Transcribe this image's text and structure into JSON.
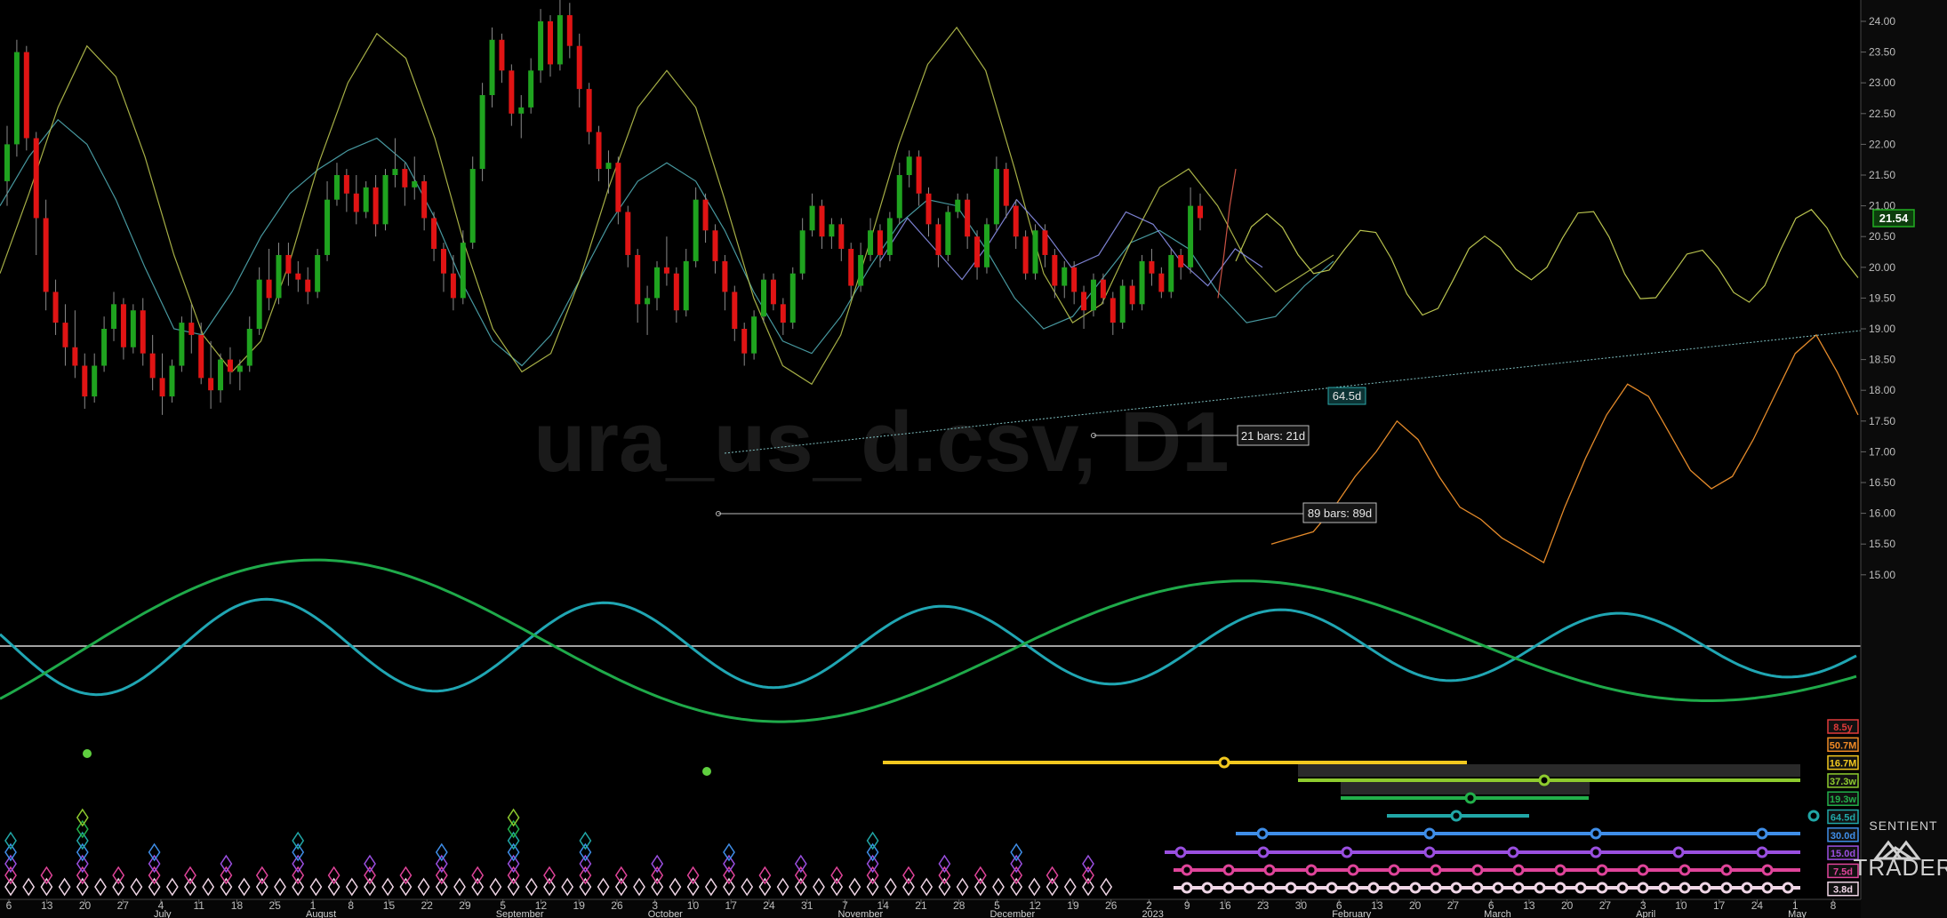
{
  "watermark": "ura_us_d.csv, D1",
  "logo": {
    "line1": "SENTIENT",
    "line2": "TRADER"
  },
  "chart_data": {
    "type": "candlestick",
    "title": "",
    "price_axis": {
      "ticks": [
        "24.00",
        "23.50",
        "23.00",
        "22.50",
        "22.00",
        "21.50",
        "21.00",
        "20.50",
        "20.00",
        "19.50",
        "19.00",
        "18.50",
        "18.00",
        "17.50",
        "17.00",
        "16.50",
        "16.00",
        "15.50",
        "15.00"
      ],
      "ylim": [
        14.0,
        24.3
      ],
      "current_price": "21.54"
    },
    "x_axis": {
      "day_ticks": [
        "6",
        "13",
        "20",
        "27",
        "4",
        "11",
        "18",
        "25",
        "1",
        "8",
        "15",
        "22",
        "29",
        "5",
        "12",
        "19",
        "26",
        "3",
        "10",
        "17",
        "24",
        "31",
        "7",
        "14",
        "21",
        "28",
        "5",
        "12",
        "19",
        "26",
        "2",
        "9",
        "16",
        "23",
        "30",
        "6",
        "13",
        "20",
        "27",
        "6",
        "13",
        "20",
        "27",
        "3",
        "10",
        "17",
        "24",
        "1",
        "8"
      ],
      "months": [
        "July",
        "August",
        "September",
        "October",
        "November",
        "December",
        "2023",
        "February",
        "March",
        "April",
        "May"
      ],
      "month_tick_index": [
        4,
        8,
        13,
        17,
        22,
        26,
        30,
        35,
        39,
        43,
        47
      ]
    },
    "candles": [
      [
        21.4,
        22.3,
        21.0,
        22.0
      ],
      [
        22.0,
        23.7,
        21.8,
        23.5
      ],
      [
        23.5,
        23.6,
        21.9,
        22.1
      ],
      [
        22.1,
        22.2,
        20.2,
        20.8
      ],
      [
        20.8,
        21.1,
        19.3,
        19.6
      ],
      [
        19.6,
        19.8,
        18.9,
        19.1
      ],
      [
        19.1,
        19.4,
        18.4,
        18.7
      ],
      [
        18.7,
        19.3,
        18.2,
        18.4
      ],
      [
        18.4,
        18.6,
        17.7,
        17.9
      ],
      [
        17.9,
        18.6,
        17.8,
        18.4
      ],
      [
        18.4,
        19.2,
        18.3,
        19.0
      ],
      [
        19.0,
        19.6,
        18.8,
        19.4
      ],
      [
        19.4,
        19.5,
        18.5,
        18.7
      ],
      [
        18.7,
        19.4,
        18.6,
        19.3
      ],
      [
        19.3,
        19.5,
        18.4,
        18.6
      ],
      [
        18.6,
        18.9,
        18.0,
        18.2
      ],
      [
        18.2,
        18.6,
        17.6,
        17.9
      ],
      [
        17.9,
        18.5,
        17.8,
        18.4
      ],
      [
        18.4,
        19.2,
        18.3,
        19.1
      ],
      [
        19.1,
        19.4,
        18.6,
        18.9
      ],
      [
        18.9,
        19.1,
        18.1,
        18.2
      ],
      [
        18.2,
        18.8,
        17.7,
        18.0
      ],
      [
        18.0,
        18.6,
        17.8,
        18.5
      ],
      [
        18.5,
        18.7,
        18.1,
        18.3
      ],
      [
        18.3,
        18.5,
        18.0,
        18.4
      ],
      [
        18.4,
        19.2,
        18.3,
        19.0
      ],
      [
        19.0,
        20.0,
        18.9,
        19.8
      ],
      [
        19.8,
        20.3,
        19.3,
        19.5
      ],
      [
        19.5,
        20.4,
        19.4,
        20.2
      ],
      [
        20.2,
        20.4,
        19.7,
        19.9
      ],
      [
        19.9,
        20.1,
        19.6,
        19.8
      ],
      [
        19.8,
        20.0,
        19.4,
        19.6
      ],
      [
        19.6,
        20.3,
        19.5,
        20.2
      ],
      [
        20.2,
        21.4,
        20.1,
        21.1
      ],
      [
        21.1,
        21.7,
        21.0,
        21.5
      ],
      [
        21.5,
        21.6,
        20.9,
        21.2
      ],
      [
        21.2,
        21.5,
        20.7,
        20.9
      ],
      [
        20.9,
        21.4,
        20.8,
        21.3
      ],
      [
        21.3,
        21.5,
        20.5,
        20.7
      ],
      [
        20.7,
        21.6,
        20.6,
        21.5
      ],
      [
        21.5,
        22.1,
        21.3,
        21.6
      ],
      [
        21.6,
        21.7,
        21.0,
        21.3
      ],
      [
        21.3,
        21.8,
        21.1,
        21.4
      ],
      [
        21.4,
        21.5,
        20.6,
        20.8
      ],
      [
        20.8,
        20.9,
        20.1,
        20.3
      ],
      [
        20.3,
        20.4,
        19.6,
        19.9
      ],
      [
        19.9,
        20.2,
        19.3,
        19.5
      ],
      [
        19.5,
        20.6,
        19.4,
        20.4
      ],
      [
        20.4,
        21.8,
        20.3,
        21.6
      ],
      [
        21.6,
        23.0,
        21.4,
        22.8
      ],
      [
        22.8,
        23.9,
        22.6,
        23.7
      ],
      [
        23.7,
        23.8,
        23.0,
        23.2
      ],
      [
        23.2,
        23.3,
        22.3,
        22.5
      ],
      [
        22.5,
        22.8,
        22.1,
        22.6
      ],
      [
        22.6,
        23.4,
        22.5,
        23.2
      ],
      [
        23.2,
        24.2,
        23.0,
        24.0
      ],
      [
        24.0,
        24.1,
        23.1,
        23.3
      ],
      [
        23.3,
        24.4,
        23.2,
        24.1
      ],
      [
        24.1,
        24.3,
        23.4,
        23.6
      ],
      [
        23.6,
        23.8,
        22.6,
        22.9
      ],
      [
        22.9,
        23.0,
        22.0,
        22.2
      ],
      [
        22.2,
        22.3,
        21.4,
        21.6
      ],
      [
        21.6,
        21.9,
        21.2,
        21.7
      ],
      [
        21.7,
        21.8,
        20.7,
        20.9
      ],
      [
        20.9,
        21.0,
        20.0,
        20.2
      ],
      [
        20.2,
        20.3,
        19.1,
        19.4
      ],
      [
        19.4,
        19.7,
        18.9,
        19.5
      ],
      [
        19.5,
        20.1,
        19.3,
        20.0
      ],
      [
        20.0,
        20.5,
        19.7,
        19.9
      ],
      [
        19.9,
        20.0,
        19.1,
        19.3
      ],
      [
        19.3,
        20.3,
        19.2,
        20.1
      ],
      [
        20.1,
        21.3,
        20.0,
        21.1
      ],
      [
        21.1,
        21.2,
        20.4,
        20.6
      ],
      [
        20.6,
        20.7,
        19.9,
        20.1
      ],
      [
        20.1,
        20.2,
        19.3,
        19.6
      ],
      [
        19.6,
        19.7,
        18.8,
        19.0
      ],
      [
        19.0,
        19.1,
        18.4,
        18.6
      ],
      [
        18.6,
        19.3,
        18.5,
        19.2
      ],
      [
        19.2,
        19.9,
        19.1,
        19.8
      ],
      [
        19.8,
        19.9,
        19.3,
        19.4
      ],
      [
        19.4,
        19.5,
        18.9,
        19.1
      ],
      [
        19.1,
        20.0,
        19.0,
        19.9
      ],
      [
        19.9,
        20.8,
        19.8,
        20.6
      ],
      [
        20.6,
        21.2,
        20.5,
        21.0
      ],
      [
        21.0,
        21.1,
        20.3,
        20.5
      ],
      [
        20.5,
        20.8,
        20.3,
        20.7
      ],
      [
        20.7,
        20.8,
        20.1,
        20.3
      ],
      [
        20.3,
        20.4,
        19.5,
        19.7
      ],
      [
        19.7,
        20.4,
        19.6,
        20.2
      ],
      [
        20.2,
        20.8,
        20.1,
        20.6
      ],
      [
        20.6,
        20.7,
        20.0,
        20.2
      ],
      [
        20.2,
        20.9,
        20.1,
        20.8
      ],
      [
        20.8,
        21.7,
        20.7,
        21.5
      ],
      [
        21.5,
        21.9,
        21.3,
        21.8
      ],
      [
        21.8,
        21.9,
        21.0,
        21.2
      ],
      [
        21.2,
        21.3,
        20.5,
        20.7
      ],
      [
        20.7,
        20.8,
        20.0,
        20.2
      ],
      [
        20.2,
        21.0,
        20.1,
        20.9
      ],
      [
        20.9,
        21.2,
        20.8,
        21.1
      ],
      [
        21.1,
        21.2,
        20.3,
        20.5
      ],
      [
        20.5,
        20.6,
        19.8,
        20.0
      ],
      [
        20.0,
        20.8,
        19.9,
        20.7
      ],
      [
        20.7,
        21.8,
        20.6,
        21.6
      ],
      [
        21.6,
        21.7,
        20.8,
        21.0
      ],
      [
        21.0,
        21.1,
        20.3,
        20.5
      ],
      [
        20.5,
        20.6,
        19.8,
        19.9
      ],
      [
        19.9,
        20.7,
        19.8,
        20.6
      ],
      [
        20.6,
        20.7,
        20.0,
        20.2
      ],
      [
        20.2,
        20.3,
        19.5,
        19.7
      ],
      [
        19.7,
        20.1,
        19.5,
        20.0
      ],
      [
        20.0,
        20.1,
        19.4,
        19.6
      ],
      [
        19.6,
        19.7,
        19.0,
        19.3
      ],
      [
        19.3,
        19.9,
        19.2,
        19.8
      ],
      [
        19.8,
        19.9,
        19.4,
        19.5
      ],
      [
        19.5,
        19.6,
        18.9,
        19.1
      ],
      [
        19.1,
        19.8,
        19.0,
        19.7
      ],
      [
        19.7,
        19.8,
        19.3,
        19.4
      ],
      [
        19.4,
        20.2,
        19.3,
        20.1
      ],
      [
        20.1,
        20.3,
        19.7,
        19.9
      ],
      [
        19.9,
        20.0,
        19.5,
        19.6
      ],
      [
        19.6,
        20.3,
        19.5,
        20.2
      ],
      [
        20.2,
        20.3,
        19.8,
        20.0
      ],
      [
        20.0,
        21.3,
        19.9,
        21.0
      ],
      [
        21.0,
        21.2,
        20.6,
        20.8
      ]
    ],
    "cycle_overlays": [
      {
        "color": "#4fa9b0",
        "values": [
          21.0,
          21.8,
          22.4,
          22.0,
          21.1,
          20.0,
          19.0,
          18.9,
          19.6,
          20.5,
          21.2,
          21.6,
          21.9,
          22.1,
          21.7,
          20.8,
          19.7,
          18.8,
          18.4,
          18.9,
          19.8,
          20.7,
          21.4,
          21.7,
          21.4,
          20.6,
          19.6,
          18.8,
          18.6,
          19.2,
          20.0,
          20.7,
          21.1,
          21.0,
          20.3,
          19.5,
          19.0,
          19.2,
          19.8,
          20.4,
          20.6,
          20.3,
          19.6,
          19.1,
          19.2,
          19.7,
          20.1
        ]
      },
      {
        "color": "#b8c24e",
        "values": [
          19.9,
          21.2,
          22.6,
          23.6,
          23.1,
          21.8,
          20.2,
          18.9,
          18.3,
          18.8,
          20.1,
          21.7,
          23.0,
          23.8,
          23.4,
          22.1,
          20.4,
          19.0,
          18.3,
          18.6,
          19.8,
          21.3,
          22.6,
          23.2,
          22.6,
          21.1,
          19.5,
          18.4,
          18.1,
          18.9,
          20.4,
          22.0,
          23.3,
          23.9,
          23.2,
          21.6,
          19.9,
          19.1,
          19.4,
          20.4,
          21.3,
          21.6,
          21.0,
          20.1,
          19.6,
          19.9,
          20.2
        ]
      },
      {
        "color": "#8a8fe8",
        "values": [
          20.1,
          20.8,
          20.3,
          19.8,
          20.4,
          21.1,
          20.6,
          20.0,
          20.2,
          20.9,
          20.7,
          20.1,
          19.7,
          20.3,
          20.0
        ]
      },
      {
        "color": "#e05a4a",
        "values": [
          19.5,
          20.2,
          21.0,
          21.6
        ]
      }
    ],
    "orange_line": [
      15.5,
      15.6,
      15.7,
      16.1,
      16.6,
      17.0,
      17.5,
      17.2,
      16.6,
      16.1,
      15.9,
      15.6,
      15.4,
      15.2,
      16.1,
      16.9,
      17.6,
      18.1,
      17.9,
      17.3,
      16.7,
      16.4,
      16.6,
      17.2,
      17.9,
      18.6,
      18.9,
      18.3,
      17.6
    ]
  },
  "annotations": {
    "measure_short": "21 bars: 21d",
    "measure_long": "89 bars: 89d",
    "trend_tag": "64.5d"
  },
  "period_scale": [
    {
      "label": "8.5y",
      "color": "#e03a3a"
    },
    {
      "label": "50.7M",
      "color": "#f08a24"
    },
    {
      "label": "16.7M",
      "color": "#f2c81f"
    },
    {
      "label": "37.3w",
      "color": "#8ecb2e"
    },
    {
      "label": "19.3w",
      "color": "#22b04a"
    },
    {
      "label": "64.5d",
      "color": "#21a7a7"
    },
    {
      "label": "30.0d",
      "color": "#3f8ee8"
    },
    {
      "label": "15.0d",
      "color": "#9a4fe0"
    },
    {
      "label": "7.5d",
      "color": "#e0449a"
    },
    {
      "label": "3.8d",
      "color": "#f0d6e6"
    }
  ],
  "colors": {
    "bull": "#1fa31f",
    "bear": "#e01414",
    "grid": "#1b1b1b"
  }
}
